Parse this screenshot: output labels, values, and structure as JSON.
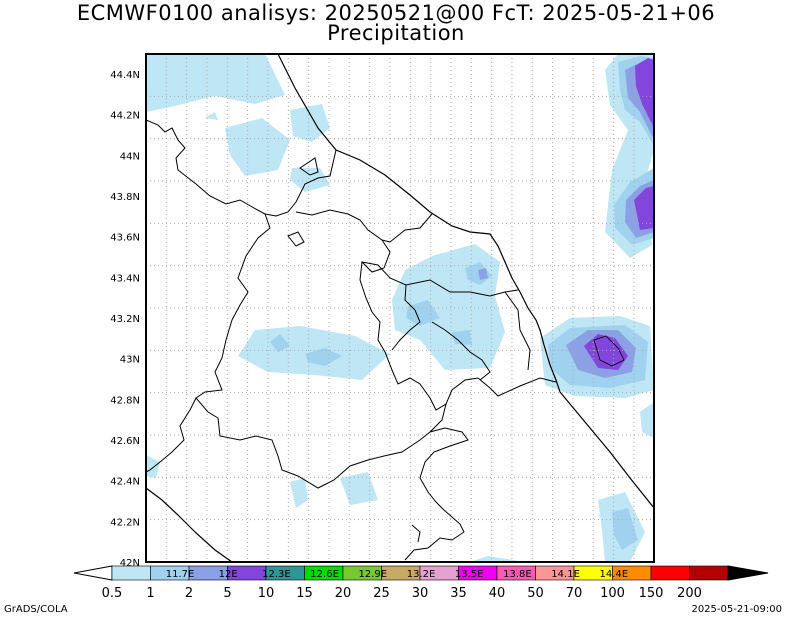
{
  "title_line1": "ECMWF0100 analisys: 20250521@00 FcT: 2025-05-21+06",
  "title_line2": "Precipitation",
  "lat_labels": [
    "44.4N",
    "44.2N",
    "44N",
    "43.8N",
    "43.6N",
    "43.4N",
    "43.2N",
    "43N",
    "42.8N",
    "42.6N",
    "42.4N",
    "42.2N",
    "42N"
  ],
  "lon_labels": [
    "11.7E",
    "12E",
    "12.3E",
    "12.6E",
    "12.9E",
    "13.2E",
    "13.5E",
    "13.8E",
    "14.1E",
    "14.4E"
  ],
  "colorbar": {
    "ticks": [
      "0.5",
      "1",
      "2",
      "5",
      "10",
      "15",
      "20",
      "25",
      "30",
      "35",
      "40",
      "50",
      "70",
      "100",
      "150",
      "200"
    ],
    "colors": [
      "#ffffff",
      "#bee6f5",
      "#a0d2f0",
      "#8ca0e6",
      "#8246dc",
      "#2d9696",
      "#00dc00",
      "#78c832",
      "#c8aa64",
      "#e6a0d2",
      "#f000f0",
      "#ff5ab4",
      "#fa9696",
      "#ffff00",
      "#ff8c00",
      "#ff0000",
      "#b40000",
      "#000000"
    ]
  },
  "footer_left": "GrADS/COLA",
  "footer_right": "2025-05-21-09:00"
}
